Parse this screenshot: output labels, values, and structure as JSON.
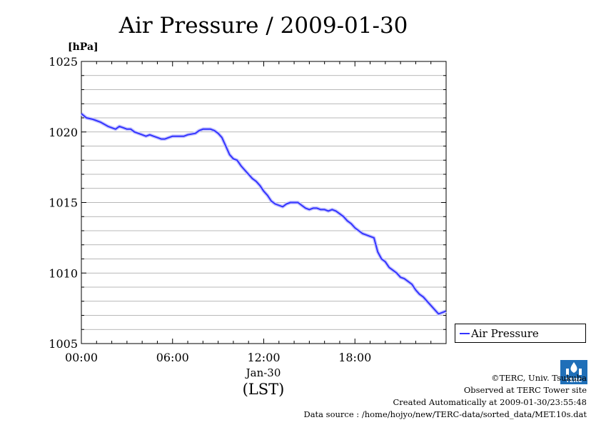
{
  "chart_data": {
    "type": "line",
    "title": "Air Pressure / 2009-01-30",
    "ylabel": "[hPa]",
    "xlabel": "(LST)",
    "date_label": "Jan-30",
    "ylim": [
      1005,
      1025
    ],
    "xlim": [
      "2009-01-30 00:00",
      "2009-01-31 00:00"
    ],
    "y_ticks": [
      "1005",
      "1010",
      "1015",
      "1020",
      "1025"
    ],
    "x_ticks": [
      "00:00",
      "06:00",
      "12:00",
      "18:00"
    ],
    "grid": "horizontal",
    "legend_position": "right",
    "series": [
      {
        "name": "Air Pressure",
        "color": "#3333ff",
        "x": [
          "00:00",
          "00:20",
          "00:45",
          "01:15",
          "01:45",
          "02:15",
          "02:30",
          "02:45",
          "03:00",
          "03:15",
          "03:30",
          "03:45",
          "04:00",
          "04:15",
          "04:30",
          "04:45",
          "05:00",
          "05:15",
          "05:30",
          "05:45",
          "06:00",
          "06:15",
          "06:30",
          "06:45",
          "07:00",
          "07:30",
          "07:45",
          "08:00",
          "08:15",
          "08:30",
          "08:45",
          "09:00",
          "09:15",
          "09:30",
          "09:45",
          "10:00",
          "10:15",
          "10:30",
          "10:45",
          "11:00",
          "11:15",
          "11:30",
          "11:45",
          "12:00",
          "12:15",
          "12:30",
          "12:45",
          "13:00",
          "13:15",
          "13:30",
          "13:45",
          "14:00",
          "14:15",
          "14:30",
          "14:45",
          "15:00",
          "15:15",
          "15:30",
          "15:45",
          "16:00",
          "16:15",
          "16:30",
          "16:45",
          "17:00",
          "17:15",
          "17:30",
          "17:45",
          "18:00",
          "18:15",
          "18:30",
          "18:45",
          "19:00",
          "19:15",
          "19:30",
          "19:45",
          "20:00",
          "20:15",
          "20:30",
          "20:45",
          "21:00",
          "21:15",
          "21:30",
          "21:45",
          "22:00",
          "22:15",
          "22:30",
          "22:45",
          "23:00",
          "23:15",
          "23:30",
          "23:45",
          "23:59"
        ],
        "values": [
          1021.3,
          1021.0,
          1020.9,
          1020.7,
          1020.4,
          1020.2,
          1020.4,
          1020.3,
          1020.2,
          1020.2,
          1020.0,
          1019.9,
          1019.8,
          1019.7,
          1019.8,
          1019.7,
          1019.6,
          1019.5,
          1019.5,
          1019.6,
          1019.7,
          1019.7,
          1019.7,
          1019.7,
          1019.8,
          1019.9,
          1020.1,
          1020.2,
          1020.2,
          1020.2,
          1020.1,
          1019.9,
          1019.6,
          1019.0,
          1018.4,
          1018.1,
          1018.0,
          1017.6,
          1017.3,
          1017.0,
          1016.7,
          1016.5,
          1016.2,
          1015.8,
          1015.5,
          1015.1,
          1014.9,
          1014.8,
          1014.7,
          1014.9,
          1015.0,
          1015.0,
          1015.0,
          1014.8,
          1014.6,
          1014.5,
          1014.6,
          1014.6,
          1014.5,
          1014.5,
          1014.4,
          1014.5,
          1014.4,
          1014.2,
          1014.0,
          1013.7,
          1013.5,
          1013.2,
          1013.0,
          1012.8,
          1012.7,
          1012.6,
          1012.5,
          1011.5,
          1011.0,
          1010.8,
          1010.4,
          1010.2,
          1010.0,
          1009.7,
          1009.6,
          1009.4,
          1009.2,
          1008.8,
          1008.5,
          1008.3,
          1008.0,
          1007.7,
          1007.4,
          1007.1,
          1007.2,
          1007.3
        ]
      }
    ]
  },
  "credits": {
    "copyright": "©TERC, Univ. Tsukuba",
    "observed": "Observed at TERC Tower site",
    "created": "Created Automatically at 2009-01-30/23:55:48",
    "source": "Data source : /home/hojyo/new/TERC-data/sorted_data/MET.10s.dat"
  },
  "logo": {
    "icon": "terc-logo-icon",
    "text": "TERC"
  }
}
